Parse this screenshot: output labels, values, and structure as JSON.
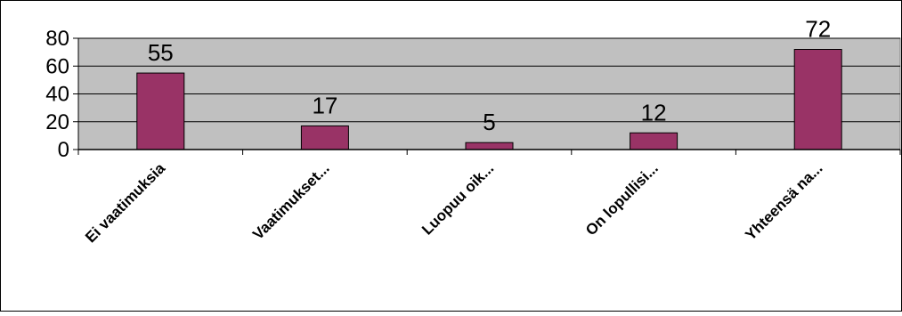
{
  "chart_data": {
    "type": "bar",
    "title": "",
    "xlabel": "",
    "ylabel": "",
    "categories": [
      "Ei vaatimuksia",
      "Vaatimukset...",
      "Luopuu oik...",
      "On lopullisi...",
      "Yhteensä na..."
    ],
    "values": [
      55,
      17,
      5,
      12,
      72
    ],
    "data_labels": [
      "55",
      "17",
      "5",
      "12",
      "72"
    ],
    "ylim": [
      0,
      80
    ],
    "yticks": [
      0,
      20,
      40,
      60,
      80
    ],
    "ytick_labels": [
      "0",
      "20",
      "40",
      "60",
      "80"
    ],
    "grid": true,
    "legend": false,
    "colors": {
      "bar": "#993366",
      "plot_background": "#c0c0c0",
      "gridline": "#000000"
    }
  }
}
